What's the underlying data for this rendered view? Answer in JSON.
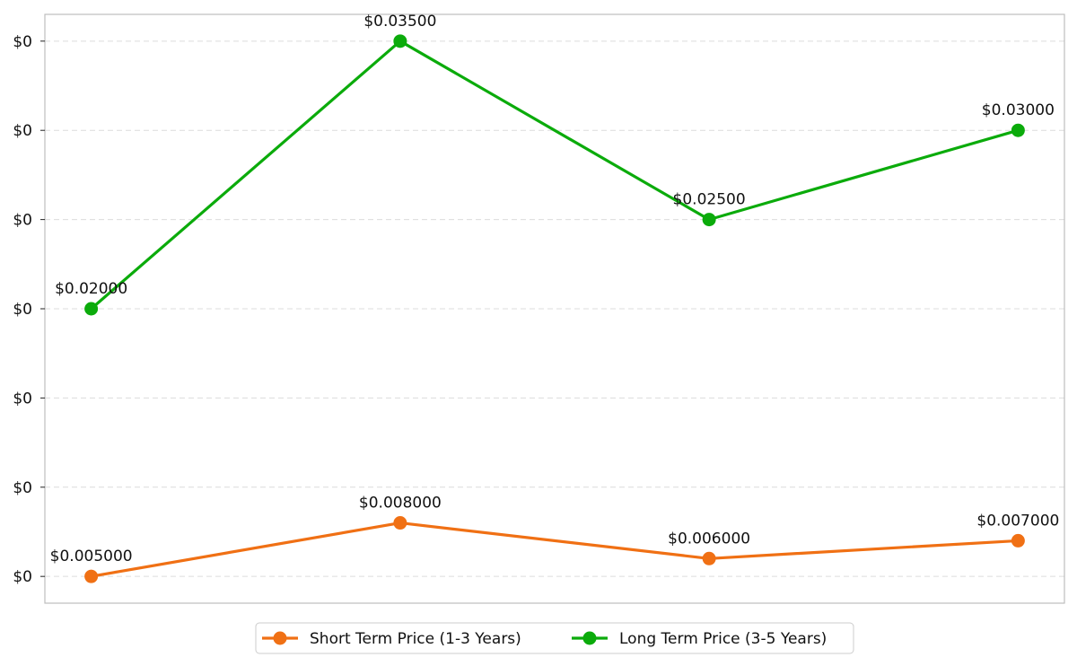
{
  "chart_data": {
    "type": "line",
    "title": "",
    "xlabel": "",
    "ylabel": "",
    "x": [
      0,
      1,
      2,
      3
    ],
    "ylim": [
      0.0035,
      0.0365
    ],
    "grid": "horizontal-dashed",
    "legend_position": "bottom-center",
    "y_ticks": [
      {
        "value": 0.005,
        "label": "$0"
      },
      {
        "value": 0.01,
        "label": "$0"
      },
      {
        "value": 0.015,
        "label": "$0"
      },
      {
        "value": 0.02,
        "label": "$0"
      },
      {
        "value": 0.025,
        "label": "$0"
      },
      {
        "value": 0.03,
        "label": "$0"
      },
      {
        "value": 0.035,
        "label": "$0"
      }
    ],
    "series": [
      {
        "name": "Short Term Price (1-3 Years)",
        "color": "#f07014",
        "values": [
          0.005,
          0.008,
          0.006,
          0.007
        ],
        "labels": [
          "$0.005000",
          "$0.008000",
          "$0.006000",
          "$0.007000"
        ]
      },
      {
        "name": "Long Term Price (3-5 Years)",
        "color": "#0bab0b",
        "values": [
          0.02,
          0.035,
          0.025,
          0.03
        ],
        "labels": [
          "$0.02000",
          "$0.03500",
          "$0.02500",
          "$0.03000"
        ]
      }
    ]
  }
}
